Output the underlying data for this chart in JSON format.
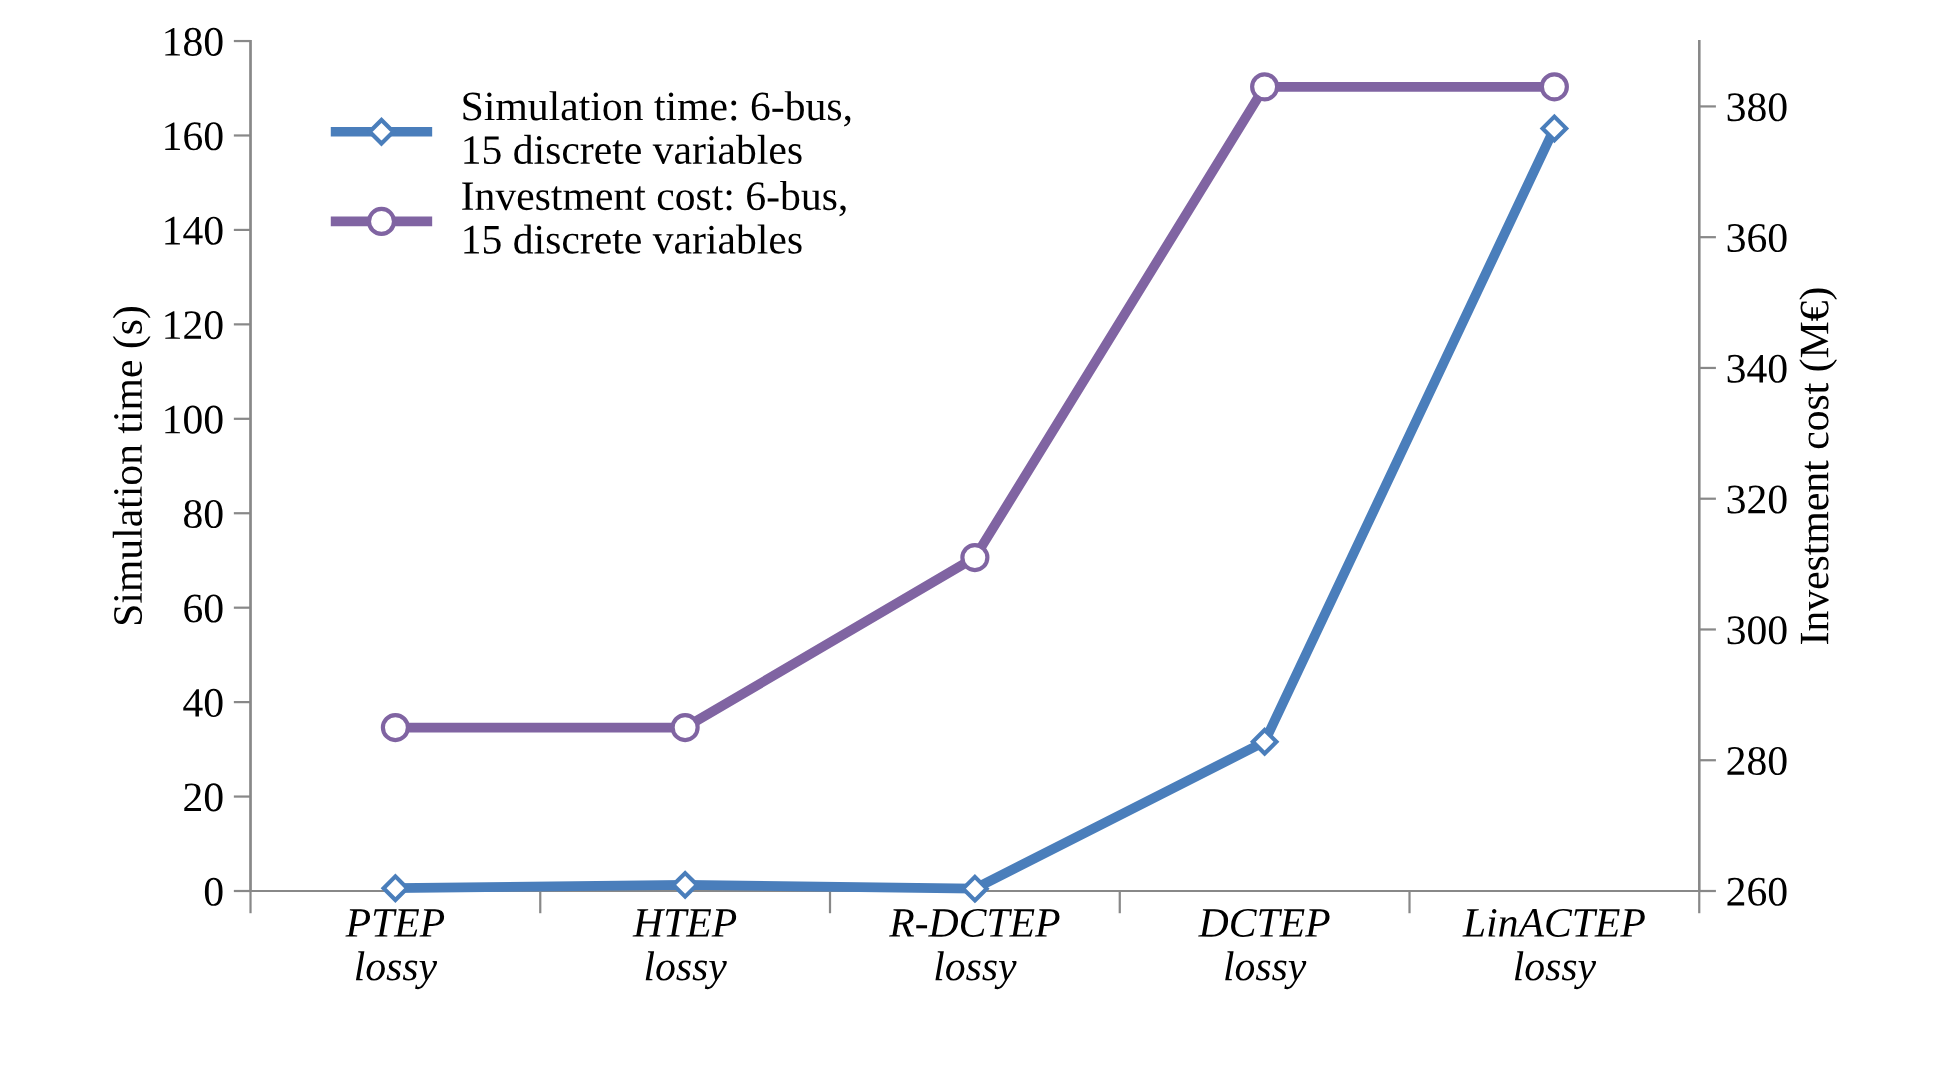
{
  "chart_data": {
    "type": "line",
    "categories": [
      "PTEP\nlossy",
      "HTEP\nlossy",
      "R-DCTEP\nlossy",
      "DCTEP\nlossy",
      "LinACTEP\nlossy"
    ],
    "series": [
      {
        "name": "Simulation time: 6-bus,\n15 discrete variables",
        "color": "#4a7ebb",
        "marker": "diamond",
        "values": [
          0.6,
          1.3,
          0.5,
          31.6,
          161.5
        ]
      },
      {
        "name": "Investment cost: 6-bus,\n15 discrete variables",
        "color": "#8064a2",
        "marker": "circle",
        "axis": "y2",
        "values": [
          285,
          285,
          311,
          383,
          383
        ]
      }
    ],
    "ylabel": "Simulation time (s)",
    "y2label": "Investment cost (M€)",
    "ylim": [
      0,
      180
    ],
    "yticks": [
      0,
      20,
      40,
      60,
      80,
      100,
      120,
      140,
      160,
      180
    ],
    "y2lim": [
      260,
      390
    ],
    "y2ticks": [
      260,
      280,
      300,
      320,
      340,
      360,
      380
    ],
    "grid": false,
    "legend": "top left",
    "line_style": "solid"
  }
}
